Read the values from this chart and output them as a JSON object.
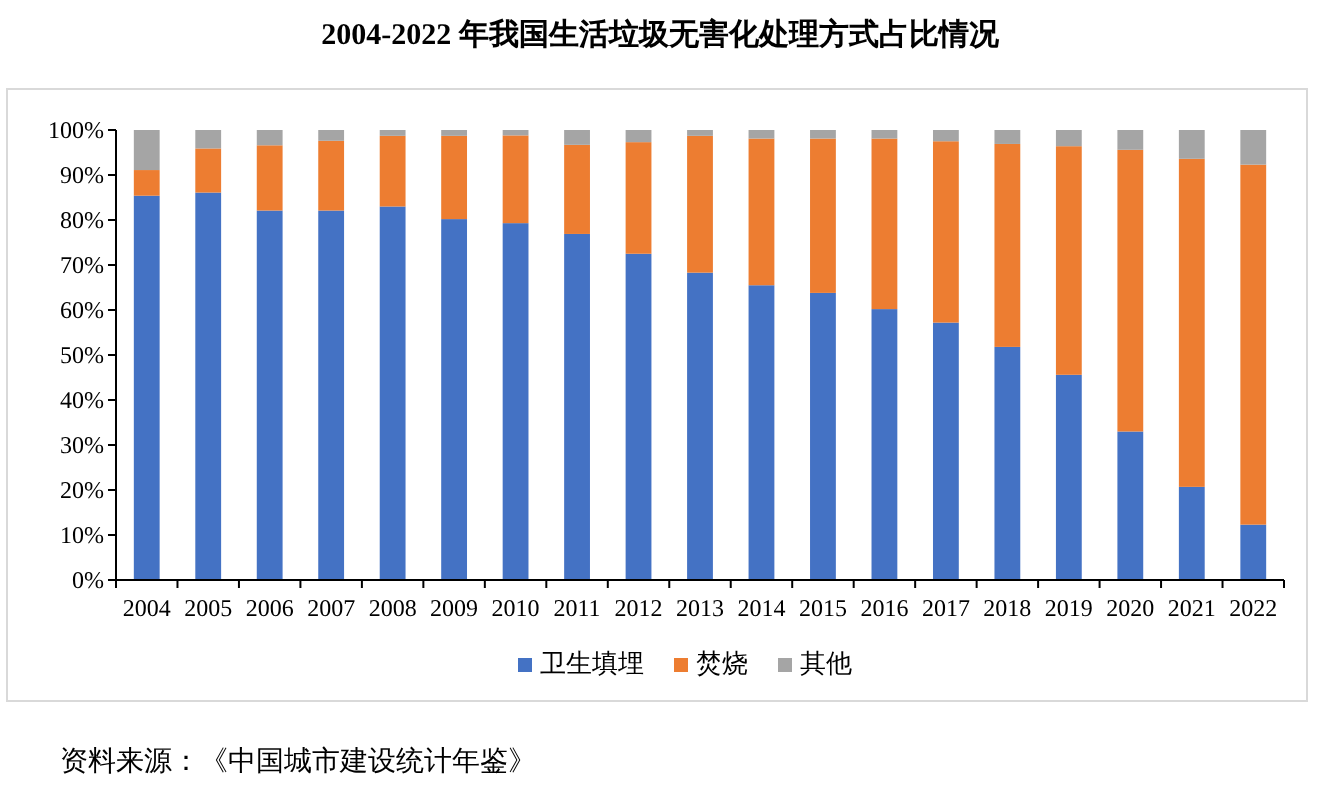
{
  "chart_data": {
    "type": "bar",
    "title": "2004-2022 年我国生活垃圾无害化处理方式占比情况",
    "categories": [
      "2004",
      "2005",
      "2006",
      "2007",
      "2008",
      "2009",
      "2010",
      "2011",
      "2012",
      "2013",
      "2014",
      "2015",
      "2016",
      "2017",
      "2018",
      "2019",
      "2020",
      "2021",
      "2022"
    ],
    "series": [
      {
        "name": "卫生填埋",
        "color": "#4472c4",
        "values": [
          85.4,
          86.1,
          82.1,
          82.1,
          83.0,
          80.2,
          79.3,
          76.9,
          72.5,
          68.3,
          65.5,
          63.8,
          60.2,
          57.2,
          51.8,
          45.6,
          33.0,
          20.7,
          12.3
        ]
      },
      {
        "name": "焚烧",
        "color": "#ed7d31",
        "values": [
          5.7,
          9.8,
          14.5,
          15.5,
          15.7,
          18.5,
          19.5,
          19.8,
          24.8,
          30.4,
          32.6,
          34.3,
          37.9,
          40.3,
          45.1,
          50.8,
          62.6,
          72.9,
          80.0
        ]
      },
      {
        "name": "其他",
        "color": "#a5a5a5",
        "values": [
          8.9,
          4.1,
          3.4,
          2.4,
          1.3,
          1.3,
          1.2,
          3.3,
          2.7,
          1.3,
          1.9,
          1.9,
          1.9,
          2.5,
          3.1,
          3.6,
          4.4,
          6.4,
          7.7
        ]
      }
    ],
    "stacked": true,
    "ylim": [
      0,
      100
    ],
    "yticks": [
      {
        "value": 0,
        "label": "0%"
      },
      {
        "value": 10,
        "label": "10%"
      },
      {
        "value": 20,
        "label": "20%"
      },
      {
        "value": 30,
        "label": "30%"
      },
      {
        "value": 40,
        "label": "40%"
      },
      {
        "value": 50,
        "label": "50%"
      },
      {
        "value": 60,
        "label": "60%"
      },
      {
        "value": 70,
        "label": "70%"
      },
      {
        "value": 80,
        "label": "80%"
      },
      {
        "value": 90,
        "label": "90%"
      },
      {
        "value": 100,
        "label": "100%"
      }
    ],
    "legend": "bottom",
    "annotations": [
      "资料来源：《中国城市建设统计年鉴》"
    ]
  }
}
